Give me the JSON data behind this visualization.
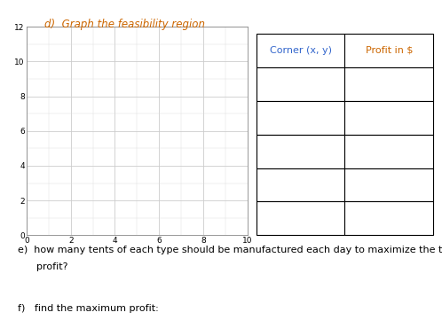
{
  "title_d": "d)  Graph the feasibility region",
  "graph_xlim": [
    0,
    10
  ],
  "graph_ylim": [
    0,
    12
  ],
  "graph_xticks": [
    0,
    2,
    4,
    6,
    8,
    10
  ],
  "graph_yticks": [
    0,
    2,
    4,
    6,
    8,
    10,
    12
  ],
  "graph_minor_xticks": [
    0,
    1,
    2,
    3,
    4,
    5,
    6,
    7,
    8,
    9,
    10
  ],
  "graph_minor_yticks": [
    0,
    1,
    2,
    3,
    4,
    5,
    6,
    7,
    8,
    9,
    10,
    11,
    12
  ],
  "table_headers": [
    "Corner (x, y)",
    "Profit in $"
  ],
  "table_rows": 5,
  "grid_major_color": "#cccccc",
  "grid_minor_color": "#dddddd",
  "axis_color": "#888888",
  "title_color_d": "#cc6600",
  "table_header_color_left": "#3366cc",
  "table_header_color_right": "#cc6600",
  "text_color_e": "#000000",
  "text_color_f": "#000000",
  "bg_color": "#ffffff",
  "title_fontsize": 8.5,
  "tick_fontsize": 6.5,
  "table_header_fontsize": 8,
  "text_fontsize_e": 8,
  "text_fontsize_f": 8,
  "e_line1": "e)  how many tents of each type should be manufactured each day to maximize the total daily",
  "e_line2": "      profit?",
  "f_line": "f)   find the maximum profit:"
}
